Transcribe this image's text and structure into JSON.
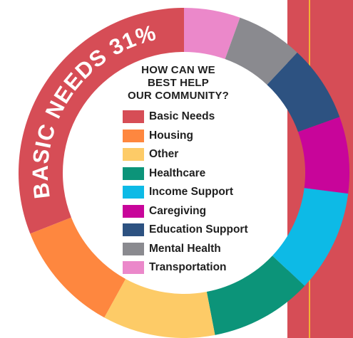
{
  "colors": {
    "band": "#d64d56",
    "band_stripe": "#f2b233",
    "label_text": "#ffffff",
    "center": "#ffffff"
  },
  "legend_title": [
    "HOW CAN WE",
    "BEST HELP",
    "OUR COMMUNITY?"
  ],
  "chart_data": {
    "type": "pie",
    "style": "donut",
    "title": "HOW CAN WE BEST HELP OUR COMMUNITY?",
    "legend_placement": "center",
    "segment_label": "BASIC NEEDS 31%",
    "series": [
      {
        "name": "",
        "slices": [
          {
            "label": "Basic Needs",
            "value": 31,
            "color": "#d64d56"
          },
          {
            "label": "Housing",
            "value": 11,
            "color": "#fe873f"
          },
          {
            "label": "Other",
            "value": 11,
            "color": "#fdcb67"
          },
          {
            "label": "Healthcare",
            "value": 10,
            "color": "#0c9479"
          },
          {
            "label": "Income Support",
            "value": 10,
            "color": "#0dbae6"
          },
          {
            "label": "Caregiving",
            "value": 7.5,
            "color": "#c8059a"
          },
          {
            "label": "Education Support",
            "value": 7.5,
            "color": "#2d5281"
          },
          {
            "label": "Mental Health",
            "value": 6.5,
            "color": "#8a8a8f"
          },
          {
            "label": "Transportation",
            "value": 5.5,
            "color": "#eb88ca"
          }
        ]
      }
    ]
  }
}
